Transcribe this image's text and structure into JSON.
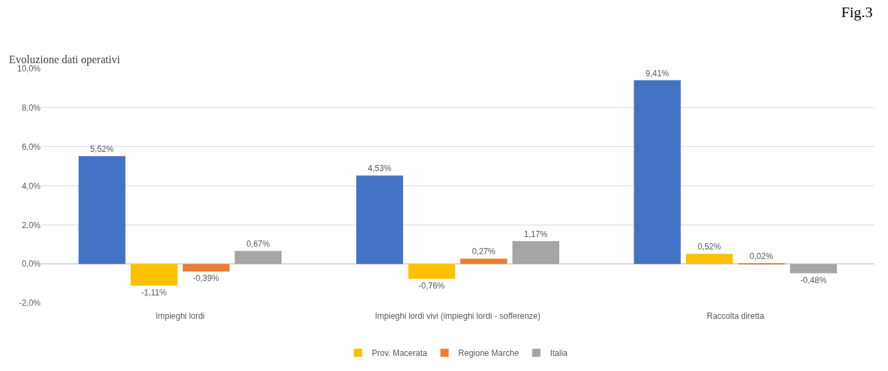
{
  "chart_data": {
    "type": "bar",
    "title": "Evoluzione dati operativi",
    "annotations": [
      "Fig.3"
    ],
    "categories": [
      "Impieghi lordi",
      "Impieghi lordi vivi (impieghi lordi - sofferenze)",
      "Raccolta diretta"
    ],
    "series": [
      {
        "color": "#4472c4",
        "values": [
          5.52,
          4.53,
          9.41
        ],
        "value_labels": [
          "5,52%",
          "4,53%",
          "9,41%"
        ]
      },
      {
        "name": "Prov. Macerata",
        "color": "#ffc000",
        "values": [
          -1.11,
          -0.76,
          0.52
        ],
        "value_labels": [
          "-1,11%",
          "-0,76%",
          "0,52%"
        ]
      },
      {
        "name": "Regione Marche",
        "color": "#ed7d31",
        "values": [
          -0.39,
          0.27,
          0.02
        ],
        "value_labels": [
          "-0,39%",
          "0,27%",
          "0,02%"
        ]
      },
      {
        "name": "Italia",
        "color": "#a5a5a5",
        "values": [
          0.67,
          1.17,
          -0.48
        ],
        "value_labels": [
          "0,67%",
          "1,17%",
          "-0,48%"
        ]
      }
    ],
    "ylim": [
      -2,
      10
    ],
    "yticks": [
      {
        "value": -2,
        "label": "-2,0%"
      },
      {
        "value": 0,
        "label": "0,0%"
      },
      {
        "value": 2,
        "label": "2,0%"
      },
      {
        "value": 4,
        "label": "4,0%"
      },
      {
        "value": 6,
        "label": "6,0%"
      },
      {
        "value": 8,
        "label": "8,0%"
      },
      {
        "value": 10,
        "label": "10,0%"
      }
    ],
    "grid": "y",
    "legend": "bottom"
  }
}
